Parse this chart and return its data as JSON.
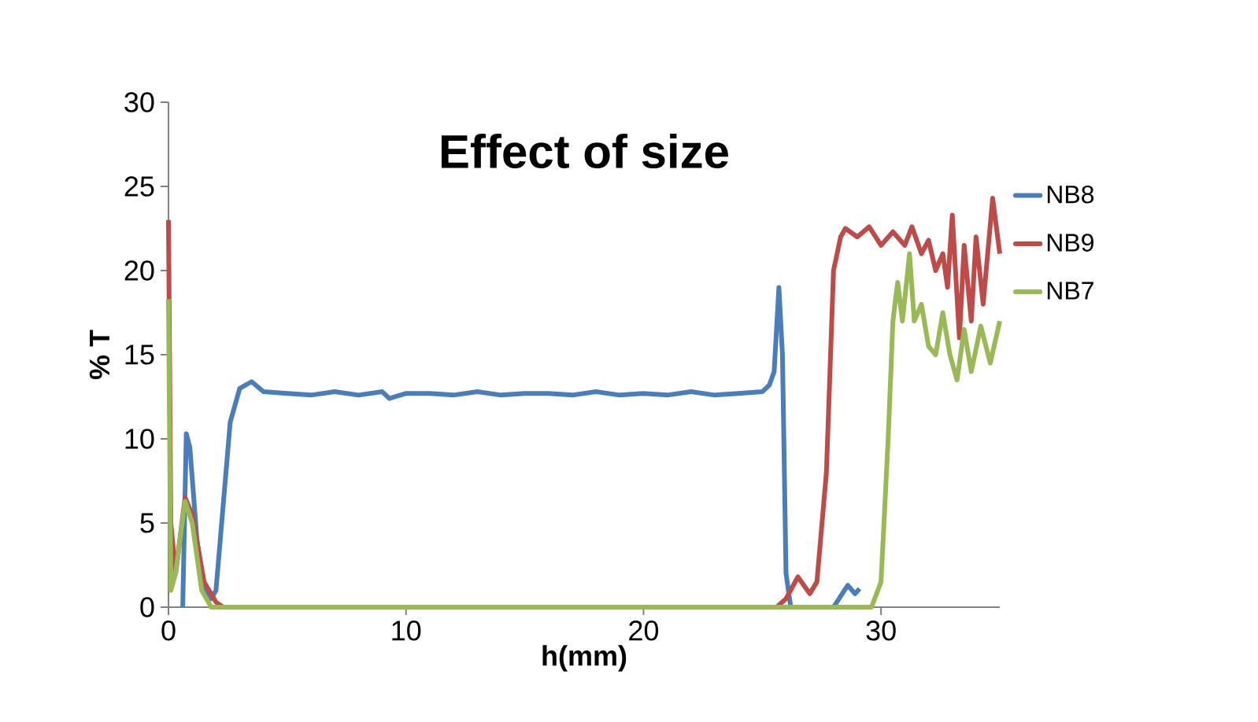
{
  "chart_data": {
    "type": "line",
    "title": "Effect of size",
    "xlabel": "h(mm)",
    "ylabel": "% T",
    "xlim": [
      0,
      35
    ],
    "xticks": [
      0,
      10,
      20,
      30
    ],
    "ylim": [
      0,
      30
    ],
    "yticks": [
      0,
      5,
      10,
      15,
      20,
      25,
      30
    ],
    "legend": "right",
    "series": [
      {
        "name": "NB8",
        "color": "#4a7ebb",
        "x": [
          0.6,
          0.75,
          0.9,
          1.2,
          1.5,
          1.8,
          2.0,
          2.3,
          2.6,
          3.0,
          3.5,
          4,
          5,
          6,
          7,
          8,
          9,
          9.3,
          10,
          11,
          12,
          13,
          14,
          15,
          16,
          17,
          18,
          19,
          20,
          21,
          22,
          23,
          24,
          25,
          25.3,
          25.5,
          25.7,
          25.85,
          26,
          26.2,
          27,
          28,
          28.6,
          28.9,
          29.1
        ],
        "values": [
          0,
          10.3,
          9.5,
          4,
          1,
          0.5,
          1,
          6,
          11,
          13,
          13.4,
          12.8,
          12.7,
          12.6,
          12.8,
          12.6,
          12.8,
          12.4,
          12.7,
          12.7,
          12.6,
          12.8,
          12.6,
          12.7,
          12.7,
          12.6,
          12.8,
          12.6,
          12.7,
          12.6,
          12.8,
          12.6,
          12.7,
          12.8,
          13.2,
          14,
          19,
          15,
          2,
          0,
          0,
          0,
          1.3,
          0.8,
          1.1
        ]
      },
      {
        "name": "NB9",
        "color": "#be4b48",
        "x": [
          0,
          0.1,
          0.3,
          0.7,
          1.0,
          1.5,
          2,
          2.3,
          10,
          20,
          25.6,
          26,
          26.5,
          27,
          27.3,
          27.7,
          28,
          28.3,
          28.5,
          29,
          29.5,
          30,
          30.5,
          31,
          31.3,
          31.7,
          32,
          32.3,
          32.6,
          32.8,
          33,
          33.3,
          33.5,
          33.8,
          34,
          34.3,
          34.7,
          35
        ],
        "values": [
          23,
          5,
          2,
          6.5,
          5.5,
          1.5,
          0.3,
          0,
          0,
          0,
          0,
          0.5,
          1.8,
          0.8,
          1.5,
          8,
          20,
          22,
          22.5,
          22,
          22.6,
          21.5,
          22.3,
          21.5,
          22.6,
          21,
          21.8,
          20,
          21,
          19,
          23.3,
          16,
          21.5,
          17,
          22,
          18,
          24.3,
          21
        ]
      },
      {
        "name": "NB7",
        "color": "#98b954",
        "x": [
          0,
          0.1,
          0.3,
          0.7,
          1,
          1.4,
          1.8,
          10,
          20,
          29.6,
          30,
          30.3,
          30.5,
          30.7,
          30.9,
          31.2,
          31.4,
          31.7,
          32,
          32.3,
          32.6,
          32.9,
          33.2,
          33.5,
          33.8,
          34.2,
          34.6,
          35
        ],
        "values": [
          18.3,
          1,
          2,
          6.3,
          5,
          1,
          0,
          0,
          0,
          0,
          1.5,
          10,
          17,
          19.3,
          17,
          21,
          17,
          18,
          15.5,
          15,
          17.5,
          15,
          13.5,
          16.5,
          14,
          16.7,
          14.5,
          17
        ]
      }
    ]
  }
}
